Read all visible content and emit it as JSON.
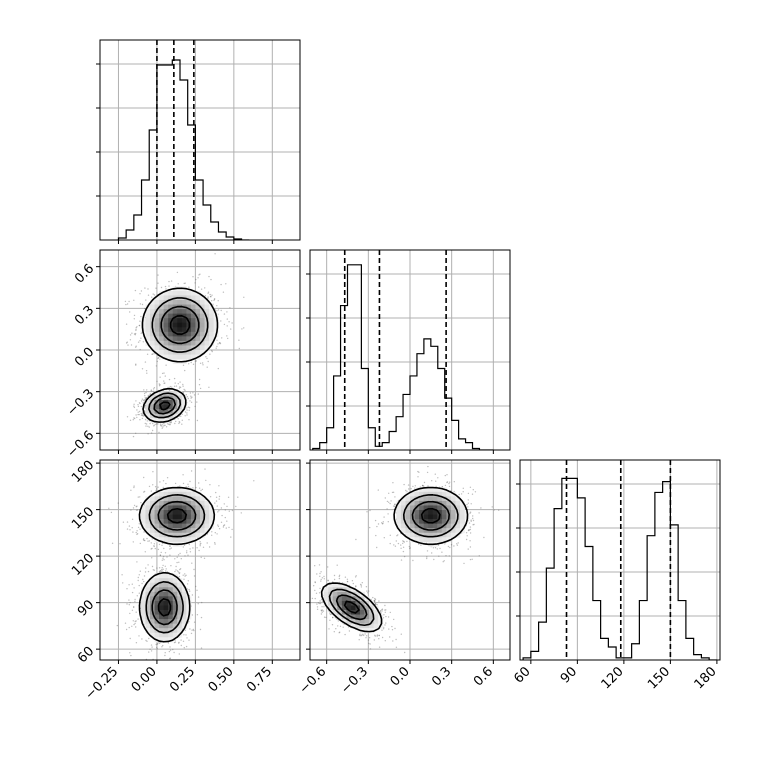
{
  "chart_data": {
    "type": "corner",
    "parameters": [
      {
        "ticks": [
          -0.25,
          0.0,
          0.25,
          0.5,
          0.75
        ],
        "tick_labels": [
          "−0.25",
          "0.00",
          "0.25",
          "0.50",
          "0.75"
        ],
        "range": [
          -0.37,
          0.93
        ]
      },
      {
        "ticks": [
          -0.6,
          -0.3,
          0.0,
          0.3,
          0.6
        ],
        "tick_labels": [
          "−0.6",
          "−0.3",
          "0.0",
          "0.3",
          "0.6"
        ],
        "range": [
          -0.72,
          0.72
        ]
      },
      {
        "ticks": [
          60,
          90,
          120,
          150,
          180
        ],
        "tick_labels": [
          "60",
          "90",
          "120",
          "150",
          "180"
        ],
        "range": [
          53,
          182
        ]
      }
    ],
    "grid": true,
    "marginal_histograms": [
      {
        "parameter": 0,
        "bin_edges": [
          -0.25,
          -0.2,
          -0.15,
          -0.1,
          -0.05,
          0.0,
          0.05,
          0.1,
          0.15,
          0.2,
          0.25,
          0.3,
          0.35,
          0.4,
          0.45,
          0.5,
          0.55,
          0.6
        ],
        "counts": [
          2,
          10,
          25,
          60,
          110,
          175,
          175,
          180,
          160,
          115,
          60,
          35,
          18,
          8,
          3,
          1,
          0
        ],
        "quantile_lines": [
          0.0,
          0.11,
          0.24
        ],
        "ymax": 200
      },
      {
        "parameter": 1,
        "bin_edges": [
          -0.7,
          -0.65,
          -0.6,
          -0.55,
          -0.5,
          -0.45,
          -0.4,
          -0.35,
          -0.3,
          -0.25,
          -0.2,
          -0.15,
          -0.1,
          -0.05,
          0.0,
          0.05,
          0.1,
          0.15,
          0.2,
          0.25,
          0.3,
          0.35,
          0.4,
          0.45,
          0.5,
          0.55,
          0.6
        ],
        "counts": [
          2,
          10,
          30,
          100,
          195,
          250,
          250,
          110,
          30,
          5,
          10,
          25,
          45,
          75,
          100,
          130,
          150,
          140,
          110,
          70,
          40,
          15,
          10,
          2,
          0,
          0
        ],
        "quantile_lines": [
          -0.47,
          -0.22,
          0.26
        ],
        "ymax": 270
      },
      {
        "parameter": 2,
        "bin_edges": [
          55,
          60,
          65,
          70,
          75,
          80,
          85,
          90,
          95,
          100,
          105,
          110,
          115,
          120,
          125,
          130,
          135,
          140,
          145,
          150,
          155,
          160,
          165,
          170,
          175,
          180
        ],
        "counts": [
          2,
          8,
          35,
          85,
          140,
          168,
          168,
          150,
          105,
          55,
          20,
          12,
          2,
          2,
          15,
          55,
          115,
          155,
          165,
          125,
          55,
          20,
          5,
          2,
          0
        ],
        "quantile_lines": [
          83,
          118,
          150
        ],
        "ymax": 185
      }
    ],
    "joint_panels": [
      {
        "x_param": 0,
        "y_param": 1,
        "modes": [
          {
            "center": [
              0.15,
              0.18
            ],
            "spread": [
              0.12,
              0.13
            ],
            "rotation_deg": 0
          },
          {
            "center": [
              0.05,
              -0.4
            ],
            "spread": [
              0.07,
              0.055
            ],
            "rotation_deg": -20
          }
        ]
      },
      {
        "x_param": 0,
        "y_param": 2,
        "modes": [
          {
            "center": [
              0.13,
              146
            ],
            "spread": [
              0.12,
              9
            ],
            "rotation_deg": 0
          },
          {
            "center": [
              0.05,
              87
            ],
            "spread": [
              0.08,
              11
            ],
            "rotation_deg": 0
          }
        ]
      },
      {
        "x_param": 1,
        "y_param": 2,
        "modes": [
          {
            "center": [
              0.15,
              146
            ],
            "spread": [
              0.13,
              9
            ],
            "rotation_deg": 0
          },
          {
            "center": [
              -0.42,
              87
            ],
            "spread": [
              0.06,
              11
            ],
            "rotation_deg": -55
          }
        ]
      }
    ]
  }
}
